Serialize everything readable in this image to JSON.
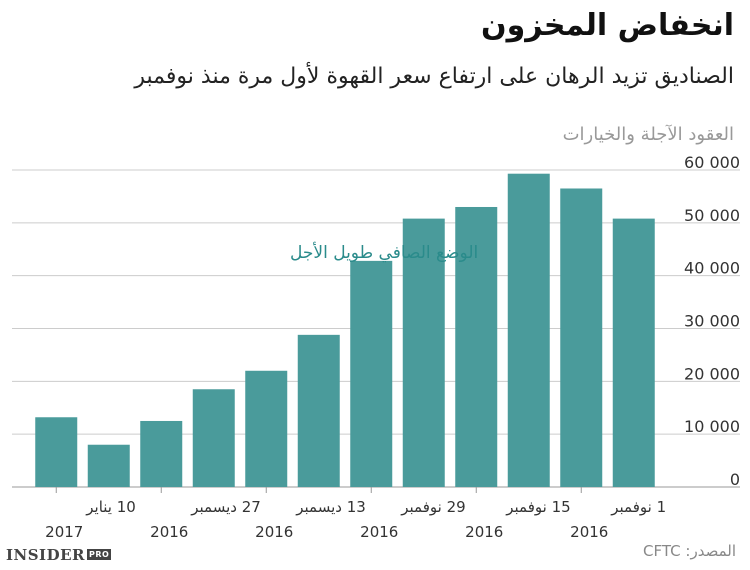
{
  "header": {
    "title": "انخفاض المخزون",
    "subtitle": "الصناديق تزيد الرهان على ارتفاع سعر القهوة لأول مرة منذ نوفمبر",
    "unit_label": "العقود الآجلة والخيارات"
  },
  "footer": {
    "source": "المصدر: CFTC",
    "logo_text": "INSIDER",
    "logo_badge": "PRO"
  },
  "colors": {
    "bar": "#4a9b9b",
    "annotation": "#2a8b8b",
    "grid": "#cccccc"
  },
  "chart_data": {
    "type": "bar",
    "title": "انخفاض المخزون",
    "ylabel": "العقود الآجلة والخيارات",
    "ylim": [
      0,
      60000
    ],
    "yticks": [
      0,
      10000,
      20000,
      30000,
      40000,
      50000,
      60000
    ],
    "ytick_labels": [
      "0",
      "10 000",
      "20 000",
      "30 000",
      "40 000",
      "50 000",
      "60 000"
    ],
    "y_axis_side": "right",
    "grid": true,
    "series": [
      {
        "name": "الوضع الصافي طويل الأجل",
        "values": [
          13200,
          8000,
          12500,
          18500,
          22000,
          28800,
          42800,
          50800,
          53000,
          59300,
          56500,
          50800
        ]
      }
    ],
    "x_labels": [
      {
        "bar_index": 0,
        "line1": "10 يناير",
        "line2": "2017"
      },
      {
        "bar_index": 2,
        "line1": "27 ديسمبر",
        "line2": "2016"
      },
      {
        "bar_index": 4,
        "line1": "13 ديسمبر",
        "line2": "2016"
      },
      {
        "bar_index": 6,
        "line1": "29 نوفمبر",
        "line2": "2016"
      },
      {
        "bar_index": 8,
        "line1": "15 نوفمبر",
        "line2": "2016"
      },
      {
        "bar_index": 10,
        "line1": "1 نوفمبر",
        "line2": "2016"
      }
    ],
    "annotation": "الوضع الصافي طويل الأجل"
  }
}
